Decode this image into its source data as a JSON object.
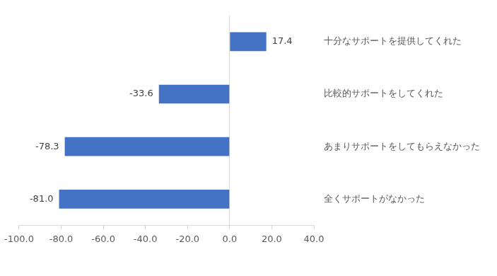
{
  "chart_data": {
    "type": "bar",
    "orientation": "horizontal",
    "categories": [
      "十分なサポートを提供してくれた",
      "比較的サポートをしてくれた",
      "あまりサポートをしてもらえなかった",
      "全くサポートがなかった"
    ],
    "values": [
      17.4,
      -33.6,
      -78.3,
      -81.0
    ],
    "value_labels": [
      "17.4",
      "-33.6",
      "-78.3",
      "-81.0"
    ],
    "color": "#4472c4",
    "xlim": [
      -100,
      40
    ],
    "xticks": [
      {
        "value": -100,
        "label": "-100.0"
      },
      {
        "value": -80,
        "label": "-80.0"
      },
      {
        "value": -60,
        "label": "-60.0"
      },
      {
        "value": -40,
        "label": "-40.0"
      },
      {
        "value": -20,
        "label": "-20.0"
      },
      {
        "value": 0,
        "label": "0.0"
      },
      {
        "value": 20,
        "label": "20.0"
      },
      {
        "value": 40,
        "label": "40.0"
      }
    ],
    "grid": false,
    "data_labels": true
  }
}
